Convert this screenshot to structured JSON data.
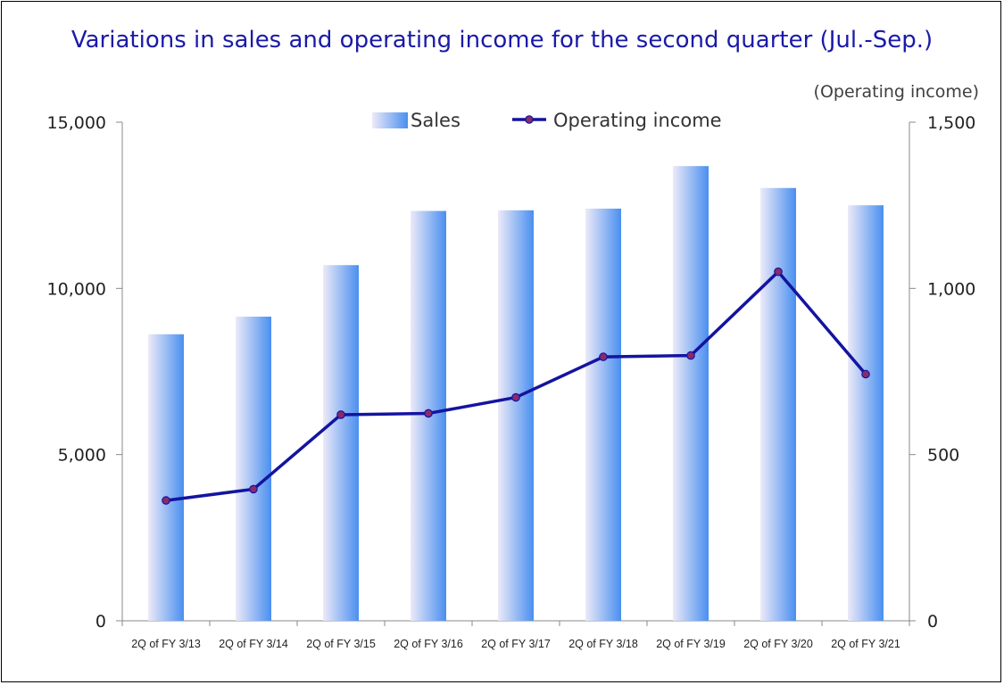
{
  "chart_data": {
    "type": "bar",
    "title": "Variations in sales and operating income for the second quarter (Jul.-Sep.)",
    "y2label": "(Operating income)",
    "categories": [
      "2Q of FY 3/13",
      "2Q of FY 3/14",
      "2Q of FY 3/15",
      "2Q of FY 3/16",
      "2Q of FY 3/17",
      "2Q of FY 3/18",
      "2Q of FY 3/19",
      "2Q of FY 3/20",
      "2Q of FY 3/21"
    ],
    "series": [
      {
        "name": "Sales",
        "type": "bar",
        "axis": "left",
        "values": [
          8620,
          9150,
          10700,
          12330,
          12350,
          12400,
          13680,
          13020,
          12500
        ]
      },
      {
        "name": "Operating income",
        "type": "line",
        "axis": "right",
        "values": [
          362,
          396,
          620,
          624,
          672,
          794,
          798,
          1050,
          742
        ]
      }
    ],
    "ylim": [
      0,
      15000
    ],
    "y2lim": [
      0,
      1500
    ],
    "yticks": [
      "0",
      "5,000",
      "10,000",
      "15,000"
    ],
    "y2ticks": [
      "0",
      "500",
      "1,000",
      "1,500"
    ],
    "legend_position": "top-center",
    "grid": false,
    "colors": {
      "title": "#1a1aa8",
      "bar_light": "#e6e8f8",
      "bar_dark": "#4a90f0",
      "line": "#1414a0",
      "marker": "#8a2a6a"
    }
  }
}
